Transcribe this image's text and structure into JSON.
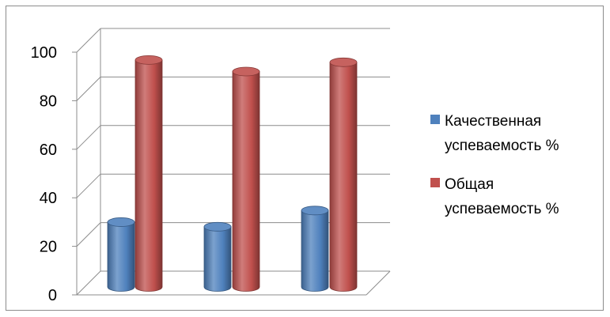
{
  "chart_data": {
    "type": "bar",
    "categories": [
      "",
      "",
      ""
    ],
    "series": [
      {
        "name": "Качественная успеваемость  %",
        "legend_lines": [
          "Качественная",
          "успеваемость  %"
        ],
        "color": "#4f81bd",
        "values": [
          28,
          26,
          33
        ]
      },
      {
        "name": "Общая успеваемость %",
        "legend_lines": [
          "Общая",
          "успеваемость %"
        ],
        "color": "#c0504d",
        "values": [
          98,
          93,
          97
        ]
      }
    ],
    "y_ticks": [
      "0",
      "20",
      "40",
      "60",
      "80",
      "100"
    ],
    "ylim": [
      0,
      100
    ],
    "grid": true,
    "legend_position": "right",
    "style": "3d-cylinder"
  }
}
